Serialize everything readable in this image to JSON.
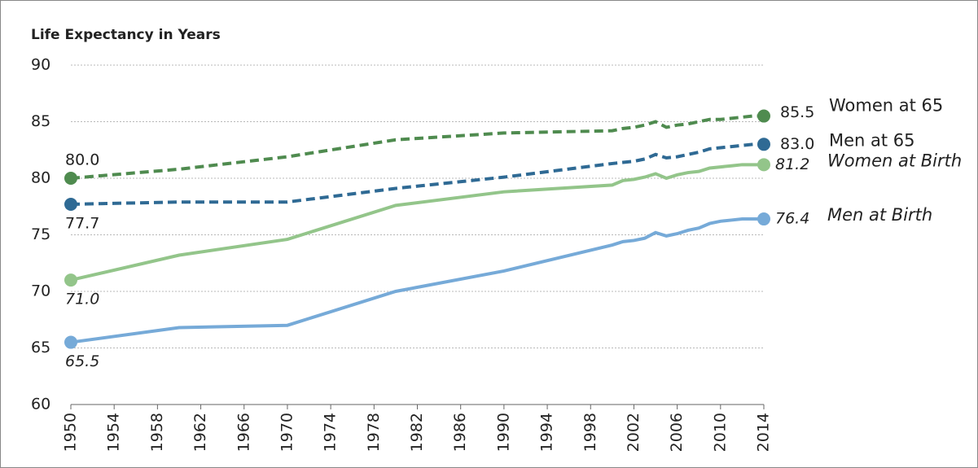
{
  "chart_data": {
    "type": "line",
    "title": "Life Expectancy in Years",
    "x": [
      1950,
      1960,
      1970,
      1980,
      1990,
      2000,
      2001,
      2002,
      2003,
      2004,
      2005,
      2006,
      2007,
      2008,
      2009,
      2010,
      2011,
      2012,
      2013,
      2014
    ],
    "series": [
      {
        "name": "Women at 65",
        "color": "#4f8b4f",
        "dashed": true,
        "italic": false,
        "values": [
          80.0,
          80.8,
          81.9,
          83.4,
          84.0,
          84.2,
          84.4,
          84.5,
          84.7,
          85.0,
          84.5,
          84.7,
          84.8,
          85.0,
          85.2,
          85.2,
          85.3,
          85.4,
          85.5,
          85.5
        ],
        "value_labels": [
          "80.0",
          null,
          null,
          null,
          null,
          null,
          null,
          null,
          null,
          null,
          null,
          null,
          null,
          null,
          null,
          null,
          null,
          null,
          null,
          "85.5"
        ]
      },
      {
        "name": "Men at 65",
        "color": "#2f6a94",
        "dashed": true,
        "italic": false,
        "values": [
          77.7,
          77.9,
          77.9,
          79.1,
          80.1,
          81.3,
          81.4,
          81.5,
          81.7,
          82.1,
          81.8,
          81.9,
          82.1,
          82.3,
          82.6,
          82.7,
          82.8,
          82.9,
          83.0,
          83.0
        ],
        "value_labels": [
          "77.7",
          null,
          null,
          null,
          null,
          null,
          null,
          null,
          null,
          null,
          null,
          null,
          null,
          null,
          null,
          null,
          null,
          null,
          null,
          "83.0"
        ]
      },
      {
        "name": "Women at Birth",
        "color": "#93c58a",
        "dashed": false,
        "italic": true,
        "values": [
          71.0,
          73.2,
          74.6,
          77.6,
          78.8,
          79.4,
          79.8,
          79.9,
          80.1,
          80.4,
          80.0,
          80.3,
          80.5,
          80.6,
          80.9,
          81.0,
          81.1,
          81.2,
          81.2,
          81.2
        ],
        "value_labels": [
          "71.0",
          null,
          null,
          null,
          null,
          null,
          null,
          null,
          null,
          null,
          null,
          null,
          null,
          null,
          null,
          null,
          null,
          null,
          null,
          "81.2"
        ]
      },
      {
        "name": "Men at Birth",
        "color": "#76aad8",
        "dashed": false,
        "italic": true,
        "values": [
          65.5,
          66.8,
          67.0,
          70.0,
          71.8,
          74.1,
          74.4,
          74.5,
          74.7,
          75.2,
          74.9,
          75.1,
          75.4,
          75.6,
          76.0,
          76.2,
          76.3,
          76.4,
          76.4,
          76.4
        ],
        "value_labels": [
          "65.5",
          null,
          null,
          null,
          null,
          null,
          null,
          null,
          null,
          null,
          null,
          null,
          null,
          null,
          null,
          null,
          null,
          null,
          null,
          "76.4"
        ]
      }
    ],
    "xlim": [
      1950,
      2014
    ],
    "xticks": [
      1950,
      1954,
      1958,
      1962,
      1966,
      1970,
      1974,
      1978,
      1982,
      1986,
      1990,
      1994,
      1998,
      2002,
      2006,
      2010,
      2014
    ],
    "ylim": [
      60,
      90
    ],
    "yticks": [
      60,
      65,
      70,
      75,
      80,
      85,
      90
    ],
    "grid": true
  }
}
